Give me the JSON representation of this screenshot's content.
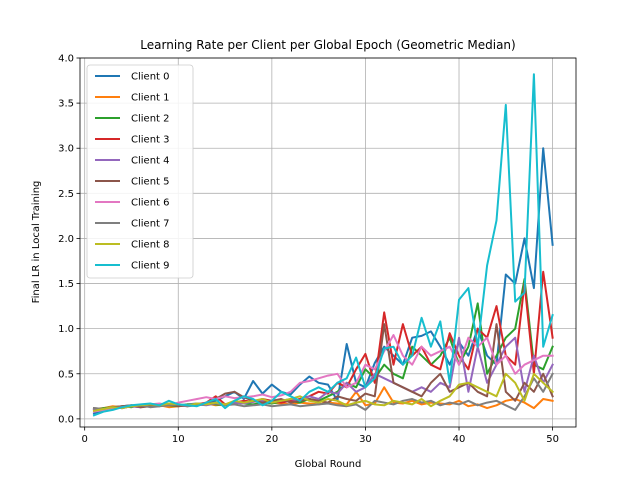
{
  "chart_data": {
    "type": "line",
    "title": "Learning Rate per Client per Global Epoch (Geometric Median)",
    "xlabel": "Global Round",
    "ylabel": "Final LR in Local Training",
    "xlim": [
      -0.5,
      52.5
    ],
    "ylim": [
      -0.09,
      4.0
    ],
    "xticks": [
      0,
      10,
      20,
      30,
      40,
      50
    ],
    "yticks": [
      0.0,
      0.5,
      1.0,
      1.5,
      2.0,
      2.5,
      3.0,
      3.5,
      4.0
    ],
    "ytick_labels": [
      "0.0",
      "0.5",
      "1.0",
      "1.5",
      "2.0",
      "2.5",
      "3.0",
      "3.5",
      "4.0"
    ],
    "grid": true,
    "legend_position": "upper-left",
    "x": [
      1,
      2,
      3,
      4,
      5,
      6,
      7,
      8,
      9,
      10,
      11,
      12,
      13,
      14,
      15,
      16,
      17,
      18,
      19,
      20,
      21,
      22,
      23,
      24,
      25,
      26,
      27,
      28,
      29,
      30,
      31,
      32,
      33,
      34,
      35,
      36,
      37,
      38,
      39,
      40,
      41,
      42,
      43,
      44,
      45,
      46,
      47,
      48,
      49,
      50
    ],
    "series": [
      {
        "name": "Client 0",
        "color": "#1f77b4",
        "values": [
          0.06,
          0.1,
          0.12,
          0.14,
          0.15,
          0.14,
          0.16,
          0.15,
          0.14,
          0.15,
          0.16,
          0.17,
          0.16,
          0.2,
          0.25,
          0.3,
          0.22,
          0.42,
          0.28,
          0.38,
          0.3,
          0.27,
          0.38,
          0.47,
          0.4,
          0.38,
          0.2,
          0.83,
          0.4,
          0.35,
          0.62,
          0.8,
          0.7,
          0.6,
          0.9,
          0.92,
          0.97,
          0.8,
          0.6,
          0.85,
          0.7,
          1.0,
          0.7,
          0.6,
          1.6,
          1.5,
          2.0,
          1.45,
          3.0,
          1.93
        ]
      },
      {
        "name": "Client 1",
        "color": "#ff7f0e",
        "values": [
          0.11,
          0.12,
          0.14,
          0.13,
          0.15,
          0.14,
          0.16,
          0.15,
          0.13,
          0.14,
          0.15,
          0.16,
          0.17,
          0.15,
          0.16,
          0.18,
          0.17,
          0.19,
          0.2,
          0.18,
          0.17,
          0.16,
          0.18,
          0.17,
          0.16,
          0.18,
          0.17,
          0.16,
          0.3,
          0.15,
          0.17,
          0.35,
          0.18,
          0.17,
          0.2,
          0.16,
          0.18,
          0.17,
          0.16,
          0.2,
          0.14,
          0.16,
          0.12,
          0.15,
          0.2,
          0.22,
          0.18,
          0.12,
          0.22,
          0.2
        ]
      },
      {
        "name": "Client 2",
        "color": "#2ca02c",
        "values": [
          0.1,
          0.12,
          0.13,
          0.14,
          0.13,
          0.15,
          0.14,
          0.16,
          0.15,
          0.14,
          0.16,
          0.15,
          0.17,
          0.16,
          0.15,
          0.18,
          0.17,
          0.16,
          0.18,
          0.17,
          0.19,
          0.2,
          0.18,
          0.22,
          0.2,
          0.25,
          0.3,
          0.4,
          0.35,
          0.55,
          0.45,
          0.6,
          0.5,
          0.45,
          0.8,
          0.7,
          0.6,
          0.7,
          0.9,
          0.6,
          0.8,
          1.28,
          0.5,
          0.7,
          0.9,
          1.0,
          1.55,
          0.6,
          0.55,
          0.8
        ]
      },
      {
        "name": "Client 3",
        "color": "#d62728",
        "values": [
          0.1,
          0.11,
          0.12,
          0.13,
          0.14,
          0.13,
          0.15,
          0.14,
          0.16,
          0.15,
          0.14,
          0.16,
          0.18,
          0.25,
          0.16,
          0.18,
          0.2,
          0.19,
          0.22,
          0.2,
          0.18,
          0.2,
          0.22,
          0.25,
          0.3,
          0.28,
          0.4,
          0.35,
          0.55,
          0.72,
          0.4,
          1.18,
          0.6,
          1.05,
          0.7,
          0.8,
          0.6,
          0.55,
          0.95,
          0.7,
          0.55,
          1.0,
          0.9,
          1.25,
          0.7,
          0.6,
          1.5,
          0.5,
          1.63,
          0.9
        ]
      },
      {
        "name": "Client 4",
        "color": "#9467bd",
        "values": [
          0.1,
          0.11,
          0.13,
          0.12,
          0.14,
          0.13,
          0.15,
          0.14,
          0.16,
          0.15,
          0.14,
          0.16,
          0.15,
          0.17,
          0.16,
          0.18,
          0.17,
          0.19,
          0.2,
          0.18,
          0.2,
          0.22,
          0.2,
          0.25,
          0.22,
          0.3,
          0.28,
          0.4,
          0.3,
          0.35,
          0.5,
          0.45,
          0.4,
          0.35,
          0.3,
          0.35,
          0.3,
          0.4,
          0.35,
          0.9,
          0.3,
          0.8,
          0.4,
          0.6,
          0.8,
          0.9,
          0.3,
          0.7,
          0.4,
          0.6
        ]
      },
      {
        "name": "Client 5",
        "color": "#8c564b",
        "values": [
          0.12,
          0.11,
          0.13,
          0.14,
          0.15,
          0.13,
          0.14,
          0.15,
          0.16,
          0.14,
          0.15,
          0.16,
          0.17,
          0.22,
          0.28,
          0.3,
          0.24,
          0.2,
          0.18,
          0.2,
          0.22,
          0.18,
          0.2,
          0.22,
          0.2,
          0.18,
          0.25,
          0.22,
          0.2,
          0.28,
          0.25,
          1.05,
          0.4,
          0.35,
          0.3,
          0.25,
          0.4,
          0.5,
          0.3,
          0.35,
          0.4,
          0.3,
          0.25,
          1.05,
          0.3,
          0.2,
          0.4,
          0.3,
          0.5,
          0.25
        ]
      },
      {
        "name": "Client 6",
        "color": "#e377c2",
        "values": [
          0.08,
          0.1,
          0.12,
          0.13,
          0.14,
          0.15,
          0.16,
          0.17,
          0.15,
          0.18,
          0.2,
          0.22,
          0.24,
          0.22,
          0.25,
          0.23,
          0.24,
          0.25,
          0.27,
          0.24,
          0.26,
          0.3,
          0.4,
          0.42,
          0.45,
          0.48,
          0.5,
          0.35,
          0.4,
          0.6,
          0.55,
          0.75,
          0.93,
          0.7,
          0.6,
          0.8,
          0.7,
          0.75,
          0.8,
          0.6,
          0.9,
          0.8,
          0.9,
          0.6,
          0.7,
          0.5,
          0.6,
          0.65,
          0.7,
          0.7
        ]
      },
      {
        "name": "Client 7",
        "color": "#7f7f7f",
        "values": [
          0.12,
          0.11,
          0.13,
          0.12,
          0.14,
          0.15,
          0.13,
          0.14,
          0.15,
          0.16,
          0.14,
          0.15,
          0.16,
          0.17,
          0.15,
          0.16,
          0.14,
          0.15,
          0.16,
          0.14,
          0.15,
          0.16,
          0.14,
          0.15,
          0.16,
          0.17,
          0.15,
          0.14,
          0.16,
          0.1,
          0.2,
          0.18,
          0.16,
          0.2,
          0.22,
          0.18,
          0.2,
          0.15,
          0.18,
          0.16,
          0.2,
          0.15,
          0.18,
          0.2,
          0.15,
          0.1,
          0.25,
          0.45,
          0.3,
          0.5
        ]
      },
      {
        "name": "Client 8",
        "color": "#bcbd22",
        "values": [
          0.09,
          0.11,
          0.13,
          0.12,
          0.14,
          0.15,
          0.16,
          0.15,
          0.17,
          0.16,
          0.15,
          0.17,
          0.16,
          0.18,
          0.16,
          0.2,
          0.18,
          0.2,
          0.22,
          0.18,
          0.2,
          0.22,
          0.25,
          0.2,
          0.18,
          0.22,
          0.2,
          0.15,
          0.18,
          0.2,
          0.16,
          0.15,
          0.2,
          0.18,
          0.16,
          0.22,
          0.14,
          0.2,
          0.25,
          0.38,
          0.4,
          0.35,
          0.3,
          0.25,
          0.5,
          0.4,
          0.2,
          0.5,
          0.4,
          0.3
        ]
      },
      {
        "name": "Client 9",
        "color": "#17becf",
        "values": [
          0.04,
          0.08,
          0.1,
          0.13,
          0.15,
          0.16,
          0.17,
          0.15,
          0.2,
          0.16,
          0.15,
          0.14,
          0.18,
          0.22,
          0.12,
          0.2,
          0.25,
          0.22,
          0.15,
          0.2,
          0.3,
          0.25,
          0.2,
          0.3,
          0.35,
          0.3,
          0.4,
          0.45,
          0.68,
          0.35,
          0.45,
          0.78,
          0.8,
          0.6,
          0.7,
          1.12,
          0.8,
          1.08,
          0.4,
          1.32,
          1.45,
          0.8,
          1.7,
          2.2,
          3.48,
          1.3,
          1.4,
          3.82,
          0.8,
          1.15
        ]
      }
    ]
  }
}
